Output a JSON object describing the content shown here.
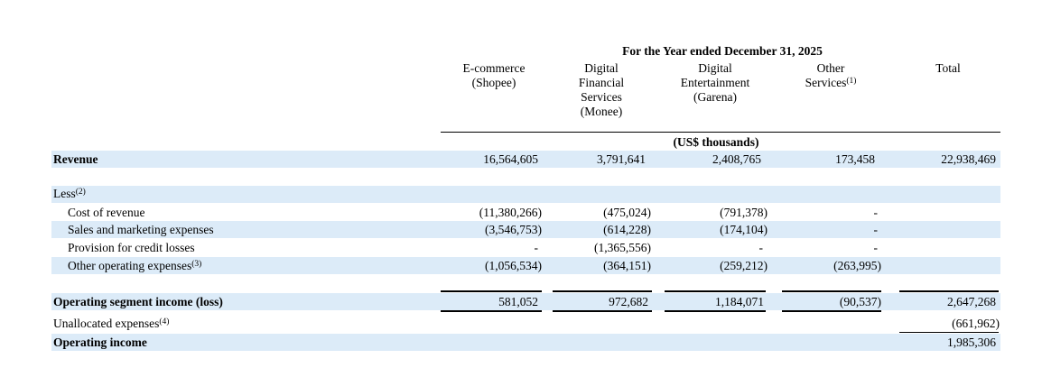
{
  "header": {
    "period": "For the Year ended December 31, 2025",
    "units": "(US$ thousands)",
    "columns": [
      {
        "lines": [
          "E-commerce",
          "(Shopee)"
        ],
        "sup": ""
      },
      {
        "lines": [
          "Digital",
          "Financial",
          "Services",
          "(Monee)"
        ],
        "sup": ""
      },
      {
        "lines": [
          "Digital",
          "Entertainment",
          "(Garena)"
        ],
        "sup": ""
      },
      {
        "lines": [
          "Other",
          "Services"
        ],
        "sup": "(1)"
      },
      {
        "lines": [
          "Total"
        ],
        "sup": ""
      }
    ]
  },
  "rows": {
    "revenue": {
      "label": "Revenue",
      "values": [
        "16,564,605",
        "3,791,641",
        "2,408,765",
        "173,458",
        "22,938,469"
      ]
    },
    "less": {
      "label": "Less",
      "sup": "(2)"
    },
    "cost_of_revenue": {
      "label": "Cost of revenue",
      "values": [
        "(11,380,266)",
        "(475,024)",
        "(791,378)",
        "-",
        ""
      ]
    },
    "sales_marketing": {
      "label": "Sales and marketing expenses",
      "values": [
        "(3,546,753)",
        "(614,228)",
        "(174,104)",
        "-",
        ""
      ]
    },
    "credit_losses": {
      "label": "Provision for credit losses",
      "values": [
        "-",
        "(1,365,556)",
        "-",
        "-",
        ""
      ]
    },
    "other_opex": {
      "label": "Other operating expenses",
      "sup": "(3)",
      "values": [
        "(1,056,534)",
        "(364,151)",
        "(259,212)",
        "(263,995)",
        ""
      ]
    },
    "segment_income": {
      "label": "Operating segment income (loss)",
      "values": [
        "581,052",
        "972,682",
        "1,184,071",
        "(90,537)",
        "2,647,268"
      ]
    },
    "unallocated": {
      "label": "Unallocated expenses",
      "sup": "(4)",
      "values": [
        "",
        "",
        "",
        "",
        "(661,962)"
      ]
    },
    "operating_income": {
      "label": "Operating income",
      "values": [
        "",
        "",
        "",
        "",
        "1,985,306"
      ]
    }
  }
}
